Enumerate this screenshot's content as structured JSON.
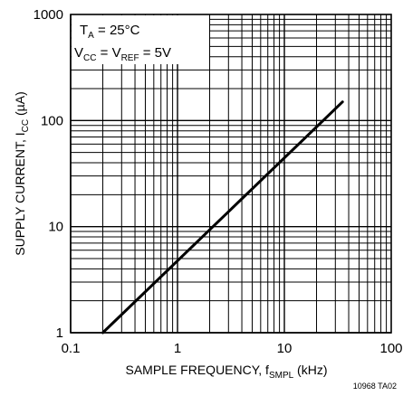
{
  "chart_data": {
    "type": "line",
    "title": "",
    "xlabel": {
      "main": "SAMPLE FREQUENCY, f",
      "sub": "SMPL",
      "unit": " (kHz)"
    },
    "ylabel": {
      "main": "SUPPLY CURRENT, I",
      "sub": "CC",
      "unit": " (µA)"
    },
    "x_scale": "log",
    "y_scale": "log",
    "xlim": [
      0.1,
      100
    ],
    "ylim": [
      1,
      1000
    ],
    "x_ticks": [
      0.1,
      1,
      10,
      100
    ],
    "x_tick_labels": [
      "0.1",
      "1",
      "10",
      "100"
    ],
    "y_ticks": [
      1,
      10,
      100,
      1000
    ],
    "y_tick_labels": [
      "1",
      "10",
      "100",
      "1000"
    ],
    "grid": true,
    "series": [
      {
        "x": [
          0.2,
          35
        ],
        "y": [
          1,
          150
        ]
      }
    ],
    "annotation": {
      "line1": {
        "main": "T",
        "sub": "A",
        "rest": " = 25°C"
      },
      "line2": {
        "a": "V",
        "a_sub": "CC",
        "b": " = V",
        "b_sub": "REF",
        "c": " = 5V"
      }
    },
    "figure_code": "10968 TA02"
  },
  "colors": {
    "line": "#000000",
    "grid": "#000000",
    "background": "#ffffff"
  }
}
